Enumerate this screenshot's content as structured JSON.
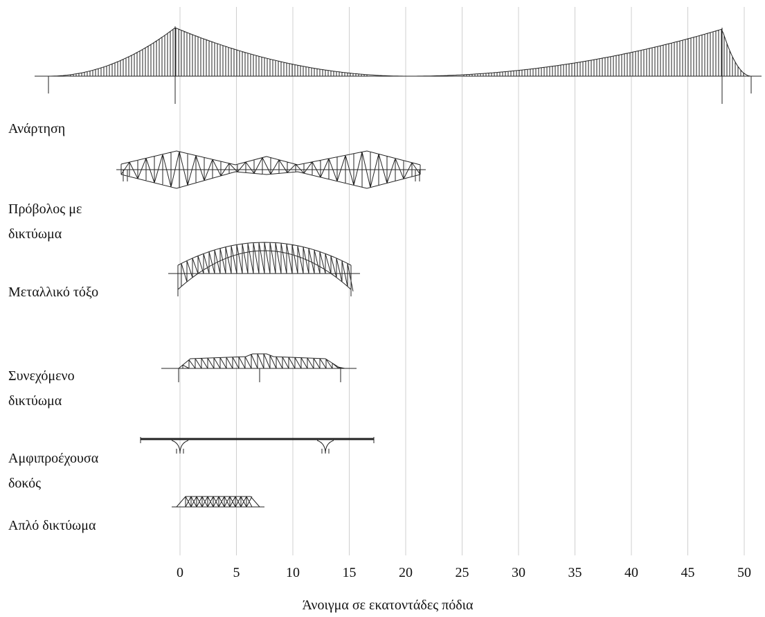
{
  "bridge_types": [
    {
      "label": [
        "Ανάρτηση"
      ]
    },
    {
      "label": [
        "Πρόβολος με",
        "δικτύωμα"
      ]
    },
    {
      "label": [
        "Μεταλλικό τόξο"
      ]
    },
    {
      "label": [
        "Συνεχόμενο",
        "δικτύωμα"
      ]
    },
    {
      "label": [
        "Αμφιπροέχουσα",
        "δοκός"
      ]
    },
    {
      "label": [
        "Απλό δικτύωμα"
      ]
    }
  ],
  "axis": {
    "title": "Άνοιγμα σε εκατοντάδες πόδια",
    "xlim": [
      0,
      50
    ],
    "xticks": [
      0,
      5,
      10,
      15,
      20,
      25,
      30,
      35,
      40,
      45,
      50
    ]
  }
}
